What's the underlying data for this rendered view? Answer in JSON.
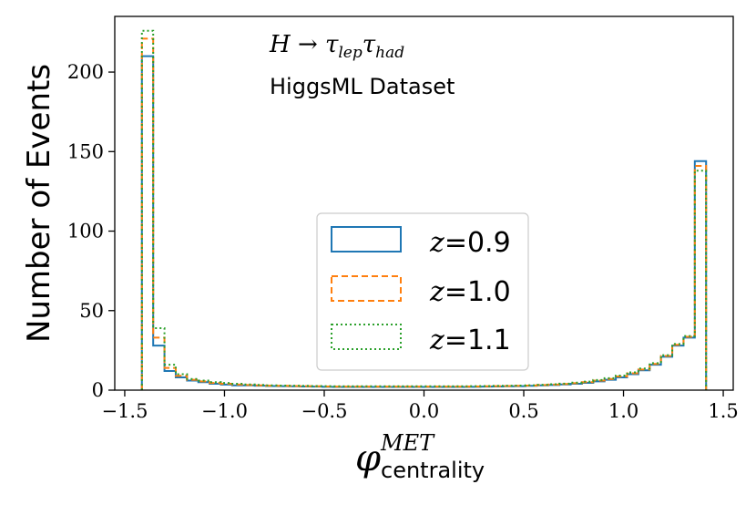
{
  "chart_data": {
    "type": "histogram",
    "title": "",
    "xlabel": "φ^MET_centrality",
    "xlabel_base": "φ",
    "xlabel_sup": "MET",
    "xlabel_sub": "centrality",
    "ylabel": "Number of Events",
    "xlim": [
      -1.55,
      1.55
    ],
    "ylim": [
      0,
      235
    ],
    "xticks": [
      -1.5,
      -1.0,
      -0.5,
      0.0,
      0.5,
      1.0,
      1.5
    ],
    "xtick_labels": [
      "−1.5",
      "−1.0",
      "−0.5",
      "0.0",
      "0.5",
      "1.0",
      "1.5"
    ],
    "yticks": [
      0,
      50,
      100,
      150,
      200
    ],
    "ytick_labels": [
      "0",
      "50",
      "100",
      "150",
      "200"
    ],
    "bin_range": [
      -1.414,
      1.414
    ],
    "bins": 50,
    "legend_position": "center",
    "annotations": {
      "process": "H → τ_lep τ_had",
      "process_base": "H → τ",
      "process_sub1": "lep",
      "process_mid": "τ",
      "process_sub2": "had",
      "dataset": "HiggsML Dataset"
    },
    "series": [
      {
        "name": "z=0.9",
        "label_var": "z",
        "label_val": "=0.9",
        "color": "#1f77b4",
        "style": "solid",
        "values": [
          210,
          28,
          12,
          8,
          6,
          5,
          4,
          3.5,
          3,
          3,
          2.8,
          2.6,
          2.5,
          2.4,
          2.3,
          2.2,
          2.1,
          2,
          2,
          2,
          2,
          2,
          2,
          2,
          2,
          2,
          2,
          2,
          2,
          2.1,
          2.2,
          2.3,
          2.4,
          2.5,
          2.7,
          3,
          3.2,
          3.6,
          4,
          4.6,
          5.5,
          6.5,
          8,
          10,
          12.5,
          16,
          21,
          28,
          33,
          144
        ]
      },
      {
        "name": "z=1.0",
        "label_var": "z",
        "label_val": "=1.0",
        "color": "#ff7f0e",
        "style": "dashed",
        "values": [
          221,
          33,
          14,
          9,
          6.5,
          5.5,
          4.5,
          4,
          3.5,
          3.2,
          3,
          2.8,
          2.7,
          2.6,
          2.5,
          2.4,
          2.3,
          2.2,
          2.2,
          2.2,
          2.2,
          2.2,
          2.2,
          2.2,
          2.2,
          2.2,
          2.2,
          2.2,
          2.2,
          2.3,
          2.4,
          2.5,
          2.6,
          2.7,
          2.9,
          3.2,
          3.5,
          3.9,
          4.4,
          5,
          6,
          7,
          8.6,
          10.6,
          13,
          16.5,
          21.5,
          28.5,
          33.5,
          141
        ]
      },
      {
        "name": "z=1.1",
        "label_var": "z",
        "label_val": "=1.1",
        "color": "#2ca02c",
        "style": "dotted",
        "values": [
          226,
          39,
          16,
          10,
          7,
          6,
          5,
          4.5,
          4,
          3.6,
          3.3,
          3,
          2.9,
          2.8,
          2.7,
          2.6,
          2.5,
          2.4,
          2.4,
          2.4,
          2.4,
          2.4,
          2.4,
          2.4,
          2.4,
          2.4,
          2.4,
          2.4,
          2.4,
          2.5,
          2.6,
          2.7,
          2.8,
          2.9,
          3.1,
          3.4,
          3.7,
          4.1,
          4.7,
          5.4,
          6.4,
          7.5,
          9.2,
          11.2,
          13.6,
          17,
          22,
          29,
          34,
          138
        ]
      }
    ]
  }
}
